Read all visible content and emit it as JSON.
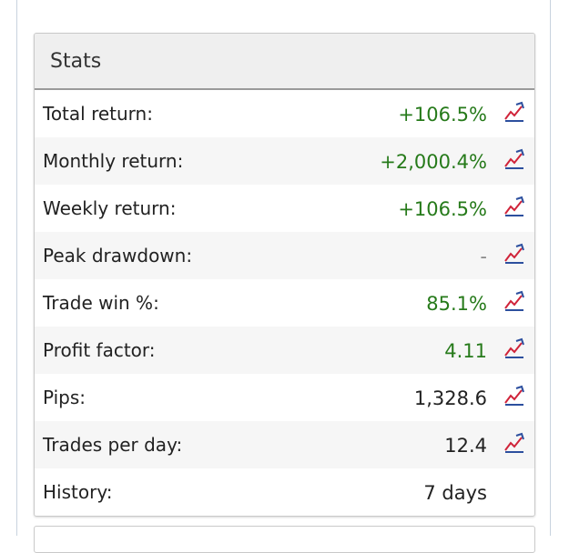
{
  "header": {
    "title": "Stats"
  },
  "table": {
    "rows": [
      {
        "label": "Total return:",
        "value": "+106.5%",
        "color": "#267a1a",
        "chart_icon": true
      },
      {
        "label": "Monthly return:",
        "value": "+2,000.4%",
        "color": "#267a1a",
        "chart_icon": true
      },
      {
        "label": "Weekly return:",
        "value": "+106.5%",
        "color": "#267a1a",
        "chart_icon": true
      },
      {
        "label": "Peak drawdown:",
        "value": "-",
        "color": "#888888",
        "chart_icon": true
      },
      {
        "label": "Trade win %:",
        "value": "85.1%",
        "color": "#267a1a",
        "chart_icon": true
      },
      {
        "label": "Profit factor:",
        "value": "4.11",
        "color": "#267a1a",
        "chart_icon": true
      },
      {
        "label": "Pips:",
        "value": "1,328.6",
        "color": "#222222",
        "chart_icon": true
      },
      {
        "label": "Trades per day:",
        "value": "12.4",
        "color": "#222222",
        "chart_icon": true
      },
      {
        "label": "History:",
        "value": "7 days",
        "color": "#222222",
        "chart_icon": false
      }
    ]
  }
}
